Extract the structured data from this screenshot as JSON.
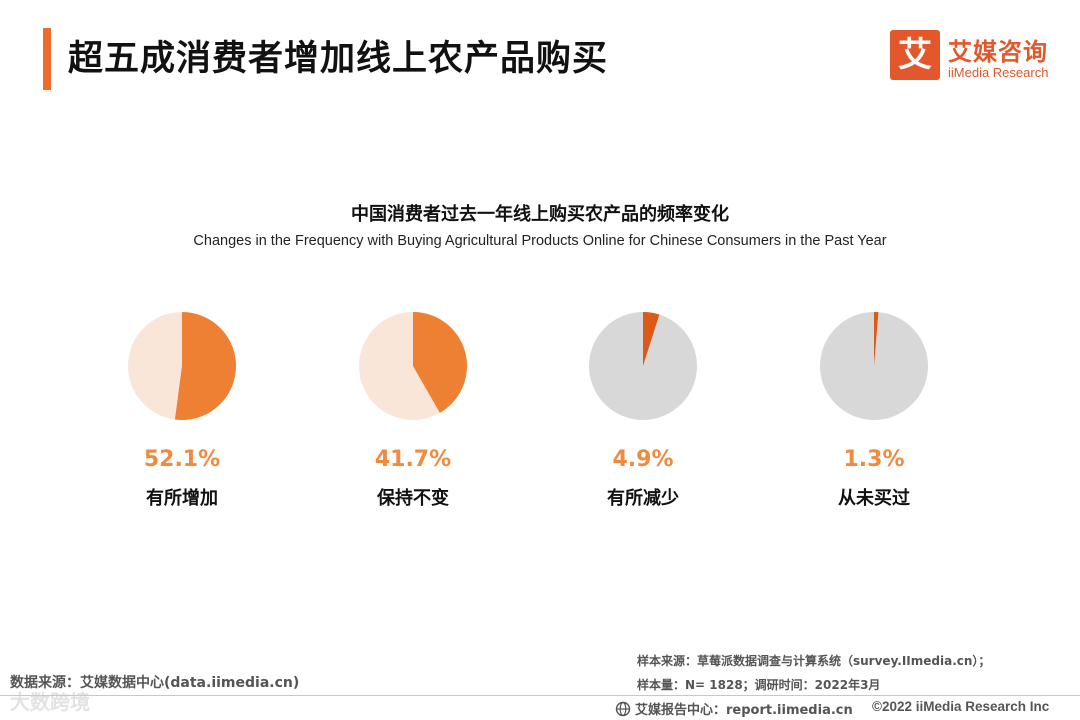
{
  "header": {
    "page_title": "超五成消费者增加线上农产品购买",
    "logo_mark": "艾",
    "logo_cn": "艾媒咨询",
    "logo_en": "iiMedia Research"
  },
  "colors": {
    "accent": "#ef6b2c",
    "slice_primary": "#ee8034",
    "slice_secondary": "#dc5a17",
    "remainder_light": "#fae5d9",
    "remainder_gray": "#d8d8d8",
    "value_text": "#ef8a3e"
  },
  "chart_data": {
    "type": "pie",
    "title": "中国消费者过去一年线上购买农产品的频率变化",
    "subtitle": "Changes in the Frequency with Buying Agricultural Products Online for Chinese Consumers in the Past Year",
    "unit": "%",
    "series": [
      {
        "name": "有所增加",
        "value": 52.1,
        "value_label": "52.1%",
        "remainder_color": "light"
      },
      {
        "name": "保持不变",
        "value": 41.7,
        "value_label": "41.7%",
        "remainder_color": "light"
      },
      {
        "name": "有所减少",
        "value": 4.9,
        "value_label": "4.9%",
        "remainder_color": "gray"
      },
      {
        "name": "从未买过",
        "value": 1.3,
        "value_label": "1.3%",
        "remainder_color": "gray"
      }
    ]
  },
  "footer": {
    "data_source": "数据来源：艾媒数据中心(data.iimedia.cn)",
    "watermark": "大数跨境",
    "sample_source": "样本来源：草莓派数据调查与计算系统（survey.IImedia.cn）；",
    "sample_size": "样本量：N= 1828；调研时间：2022年3月",
    "report_center": "艾媒报告中心：report.iimedia.cn",
    "copyright": "©2022  iiMedia Research  Inc"
  }
}
